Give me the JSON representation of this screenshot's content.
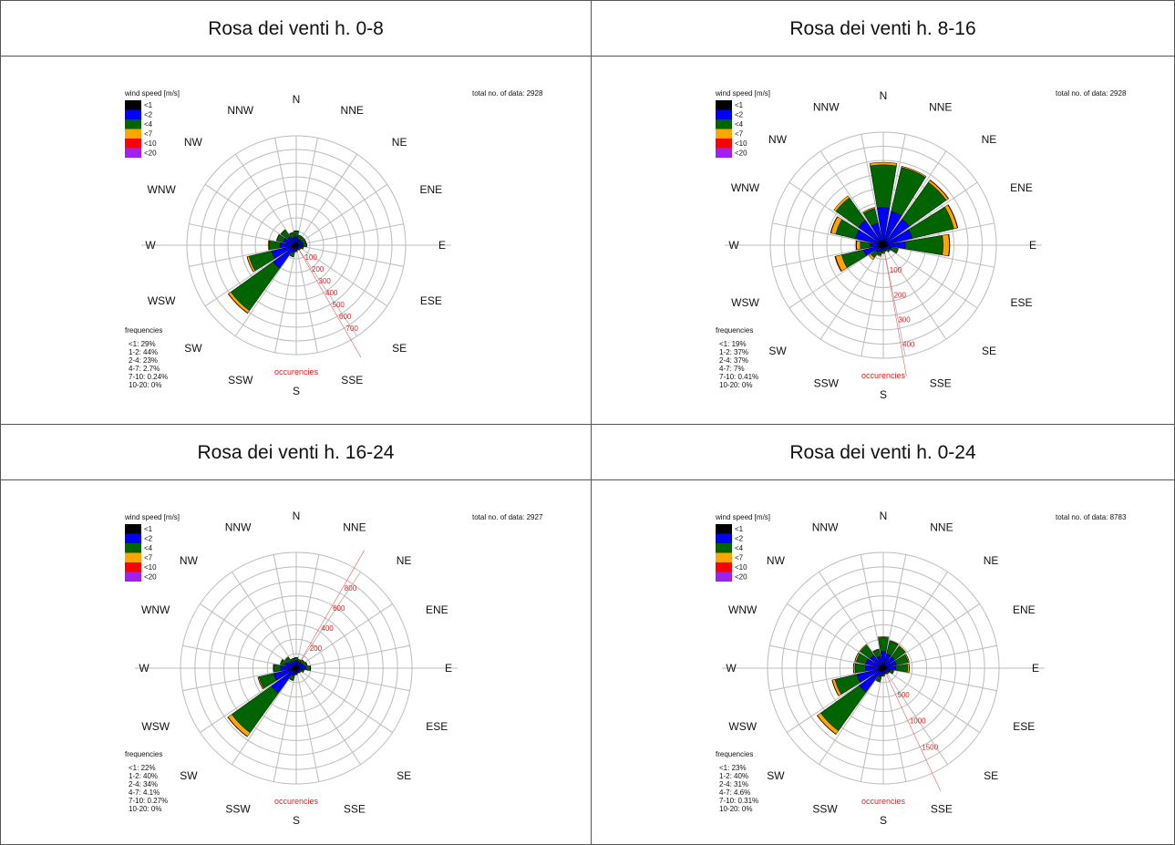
{
  "legend_title": "wind speed [m/s]",
  "legend": [
    {
      "label": "<1",
      "color": "#000000"
    },
    {
      "label": "<2",
      "color": "#0000ff"
    },
    {
      "label": "<4",
      "color": "#006400"
    },
    {
      "label": "<7",
      "color": "#ffa500"
    },
    {
      "label": "<10",
      "color": "#ff0000"
    },
    {
      "label": "<20",
      "color": "#a020f0"
    }
  ],
  "frequencies_label": "frequencies",
  "axis_label": "occurencies",
  "directions": [
    "N",
    "NNE",
    "NE",
    "ENE",
    "E",
    "ESE",
    "SE",
    "SSE",
    "S",
    "SSW",
    "SW",
    "WSW",
    "W",
    "WNW",
    "NW",
    "NNW"
  ],
  "panels": [
    {
      "title": "Rosa dei venti h. 0-8",
      "total": "total no. of data: 2928",
      "frequencies": [
        "<1: 29%",
        "1-2: 44%",
        "2-4: 23%",
        "4-7: 2.7%",
        "7-10: 0.24%",
        "10-20: 0%"
      ]
    },
    {
      "title": "Rosa dei venti h. 8-16",
      "total": "total no. of data: 2928",
      "frequencies": [
        "<1: 19%",
        "1-2: 37%",
        "2-4: 37%",
        "4-7: 7%",
        "7-10: 0.41%",
        "10-20: 0%"
      ]
    },
    {
      "title": "Rosa dei venti h. 16-24",
      "total": "total no. of data: 2927",
      "frequencies": [
        "<1: 22%",
        "1-2: 40%",
        "2-4: 34%",
        "4-7: 4.1%",
        "7-10: 0.27%",
        "10-20: 0%"
      ]
    },
    {
      "title": "Rosa dei venti h. 0-24",
      "total": "total no. of data: 8783",
      "frequencies": [
        "<1: 23%",
        "1-2: 40%",
        "2-4: 31%",
        "4-7: 4.6%",
        "7-10: 0.31%",
        "10-20: 0%"
      ]
    }
  ],
  "chart_data": [
    {
      "type": "radial_stacked_bar",
      "title": "Rosa dei venti h. 0-8",
      "rmax": 800,
      "ticks": [
        100,
        200,
        300,
        400,
        500,
        600,
        700
      ],
      "tick_angle_deg": 150,
      "categories": [
        "N",
        "NNE",
        "NE",
        "ENE",
        "E",
        "ESE",
        "SE",
        "SSE",
        "S",
        "SSW",
        "SW",
        "WSW",
        "W",
        "WNW",
        "NW",
        "NNW"
      ],
      "series": [
        {
          "name": "<1",
          "values": [
            22,
            16,
            18,
            18,
            18,
            16,
            14,
            14,
            16,
            18,
            28,
            34,
            30,
            26,
            22,
            18
          ]
        },
        {
          "name": "<2",
          "values": [
            40,
            28,
            30,
            30,
            32,
            24,
            16,
            14,
            20,
            38,
            180,
            150,
            90,
            70,
            55,
            40
          ]
        },
        {
          "name": "<4",
          "values": [
            40,
            30,
            25,
            25,
            26,
            14,
            10,
            8,
            10,
            30,
            380,
            170,
            80,
            50,
            60,
            35
          ]
        },
        {
          "name": "<7",
          "values": [
            4,
            2,
            2,
            2,
            2,
            2,
            2,
            2,
            2,
            3,
            22,
            15,
            6,
            3,
            4,
            3
          ]
        },
        {
          "name": "<10",
          "values": [
            0,
            0,
            0,
            0,
            0,
            0,
            0,
            0,
            0,
            0,
            3,
            1,
            0,
            0,
            0,
            0
          ]
        },
        {
          "name": "<20",
          "values": [
            0,
            0,
            0,
            0,
            0,
            0,
            0,
            0,
            0,
            0,
            0,
            0,
            0,
            0,
            0,
            0
          ]
        }
      ]
    },
    {
      "type": "radial_stacked_bar",
      "title": "Rosa dei venti h. 8-16",
      "rmax": 450,
      "ticks": [
        100,
        200,
        300,
        400
      ],
      "tick_angle_deg": 170,
      "categories": [
        "N",
        "NNE",
        "NE",
        "ENE",
        "E",
        "ESE",
        "SE",
        "SSE",
        "S",
        "SSW",
        "SW",
        "WSW",
        "W",
        "WNW",
        "NW",
        "NNW"
      ],
      "series": [
        {
          "name": "<1",
          "values": [
            20,
            18,
            18,
            18,
            18,
            14,
            10,
            8,
            10,
            12,
            16,
            20,
            22,
            24,
            22,
            20
          ]
        },
        {
          "name": "<2",
          "values": [
            130,
            120,
            110,
            100,
            70,
            20,
            12,
            8,
            10,
            15,
            20,
            60,
            30,
            90,
            100,
            70
          ]
        },
        {
          "name": "<4",
          "values": [
            170,
            180,
            180,
            170,
            150,
            25,
            10,
            8,
            10,
            15,
            25,
            90,
            40,
            80,
            110,
            60
          ]
        },
        {
          "name": "<7",
          "values": [
            10,
            5,
            10,
            15,
            25,
            3,
            2,
            2,
            3,
            4,
            10,
            25,
            15,
            20,
            10,
            5
          ]
        },
        {
          "name": "<10",
          "values": [
            0,
            0,
            2,
            2,
            2,
            0,
            0,
            0,
            0,
            0,
            0,
            3,
            2,
            2,
            0,
            0
          ]
        },
        {
          "name": "<20",
          "values": [
            0,
            0,
            0,
            0,
            0,
            0,
            0,
            0,
            0,
            0,
            0,
            0,
            0,
            0,
            0,
            0
          ]
        }
      ]
    },
    {
      "type": "radial_stacked_bar",
      "title": "Rosa dei venti h. 16-24",
      "rmax": 1000,
      "ticks": [
        200,
        400,
        600,
        800
      ],
      "tick_angle_deg": 30,
      "categories": [
        "N",
        "NNE",
        "NE",
        "ENE",
        "E",
        "ESE",
        "SE",
        "SSE",
        "S",
        "SSW",
        "SW",
        "WSW",
        "W",
        "WNW",
        "NW",
        "NNW"
      ],
      "series": [
        {
          "name": "<1",
          "values": [
            25,
            22,
            22,
            22,
            22,
            18,
            16,
            16,
            18,
            22,
            35,
            40,
            35,
            30,
            26,
            22
          ]
        },
        {
          "name": "<2",
          "values": [
            40,
            35,
            40,
            45,
            60,
            30,
            20,
            18,
            25,
            45,
            230,
            160,
            100,
            70,
            50,
            40
          ]
        },
        {
          "name": "<4",
          "values": [
            25,
            20,
            25,
            30,
            40,
            20,
            12,
            10,
            12,
            40,
            420,
            130,
            60,
            40,
            40,
            25
          ]
        },
        {
          "name": "<7",
          "values": [
            2,
            2,
            2,
            2,
            3,
            2,
            2,
            2,
            2,
            4,
            40,
            10,
            5,
            3,
            3,
            2
          ]
        },
        {
          "name": "<10",
          "values": [
            0,
            0,
            0,
            0,
            0,
            0,
            0,
            0,
            0,
            0,
            4,
            1,
            0,
            0,
            0,
            0
          ]
        },
        {
          "name": "<20",
          "values": [
            0,
            0,
            0,
            0,
            0,
            0,
            0,
            0,
            0,
            0,
            0,
            0,
            0,
            0,
            0,
            0
          ]
        }
      ]
    },
    {
      "type": "radial_stacked_bar",
      "title": "Rosa dei venti h. 0-24",
      "rmax": 2000,
      "ticks": [
        500,
        1000,
        1500
      ],
      "tick_angle_deg": 155,
      "categories": [
        "N",
        "NNE",
        "NE",
        "ENE",
        "E",
        "ESE",
        "SE",
        "SSE",
        "S",
        "SSW",
        "SW",
        "WSW",
        "W",
        "WNW",
        "NW",
        "NNW"
      ],
      "series": [
        {
          "name": "<1",
          "values": [
            70,
            60,
            60,
            60,
            60,
            50,
            40,
            38,
            44,
            52,
            80,
            95,
            90,
            80,
            70,
            62
          ]
        },
        {
          "name": "<2",
          "values": [
            220,
            190,
            180,
            170,
            160,
            70,
            48,
            40,
            55,
            100,
            430,
            370,
            220,
            230,
            210,
            150
          ]
        },
        {
          "name": "<4",
          "values": [
            240,
            230,
            220,
            210,
            200,
            60,
            32,
            26,
            32,
            85,
            820,
            390,
            180,
            170,
            210,
            120
          ]
        },
        {
          "name": "<7",
          "values": [
            16,
            9,
            14,
            19,
            30,
            7,
            6,
            6,
            7,
            11,
            72,
            50,
            26,
            26,
            17,
            10
          ]
        },
        {
          "name": "<10",
          "values": [
            0,
            0,
            2,
            2,
            2,
            0,
            0,
            0,
            0,
            0,
            7,
            5,
            2,
            2,
            0,
            0
          ]
        },
        {
          "name": "<20",
          "values": [
            0,
            0,
            0,
            0,
            0,
            0,
            0,
            0,
            0,
            0,
            0,
            0,
            0,
            0,
            0,
            0
          ]
        }
      ]
    }
  ]
}
